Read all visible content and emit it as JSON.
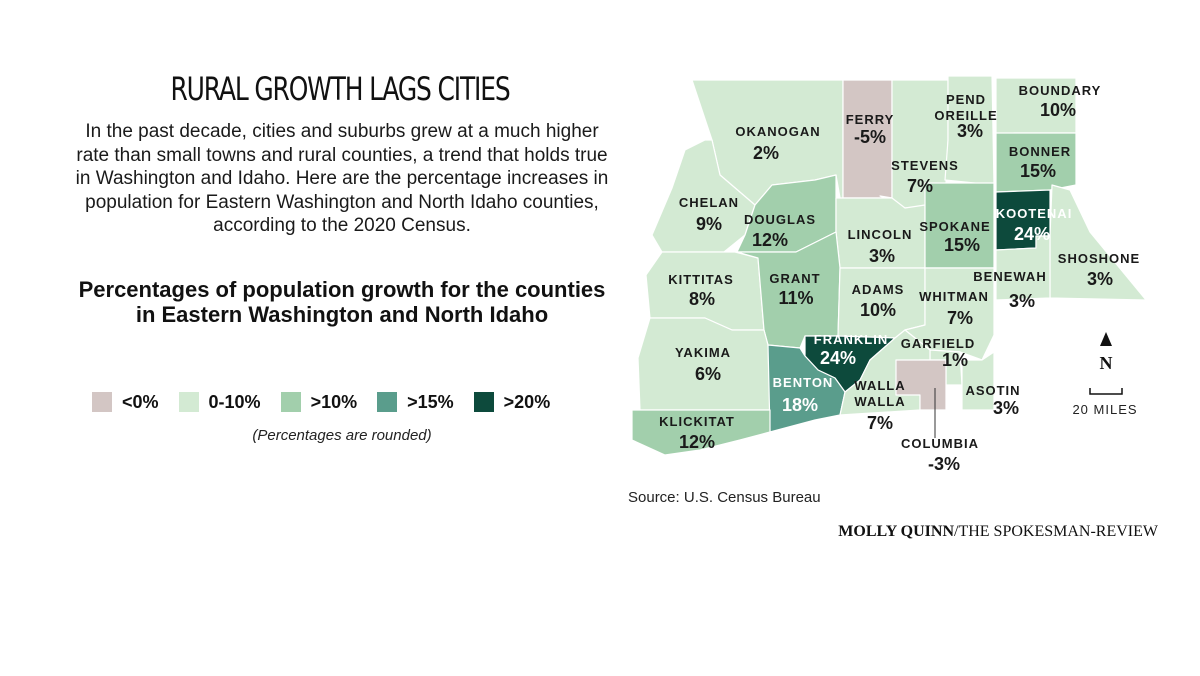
{
  "title": "RURAL GROWTH LAGS CITIES",
  "intro": "In the past decade, cities and suburbs grew at a much higher rate than small towns and rural counties, a trend that holds true in Washington and Idaho. Here are the percentage increases in population for Eastern Washington and North Idaho counties, according to the 2020 Census.",
  "subhead": "Percentages of population growth for the counties in Eastern Washington and North Idaho",
  "legend": [
    {
      "label": "<0%",
      "color": "#d3c6c4"
    },
    {
      "label": "0-10%",
      "color": "#d3ead3"
    },
    {
      "label": ">10%",
      "color": "#a2cfac"
    },
    {
      "label": ">15%",
      "color": "#5a9d8c"
    },
    {
      "label": ">20%",
      "color": "#0d4a3c"
    }
  ],
  "rounded_note": "(Percentages are rounded)",
  "map": {
    "colors": {
      "neg": "#d3c6c4",
      "low": "#d3ead3",
      "mid": "#a2cfac",
      "high": "#5a9d8c",
      "top": "#0d4a3c",
      "border": "#ffffff"
    },
    "counties": [
      {
        "name": "OKANOGAN",
        "value": "2%",
        "class": "low"
      },
      {
        "name": "FERRY",
        "value": "-5%",
        "class": "neg"
      },
      {
        "name": "STEVENS",
        "value": "7%",
        "class": "low"
      },
      {
        "name": "PEND OREILLE",
        "value": "3%",
        "class": "low"
      },
      {
        "name": "BOUNDARY",
        "value": "10%",
        "class": "low"
      },
      {
        "name": "BONNER",
        "value": "15%",
        "class": "mid"
      },
      {
        "name": "CHELAN",
        "value": "9%",
        "class": "low"
      },
      {
        "name": "DOUGLAS",
        "value": "12%",
        "class": "mid"
      },
      {
        "name": "LINCOLN",
        "value": "3%",
        "class": "low"
      },
      {
        "name": "SPOKANE",
        "value": "15%",
        "class": "mid"
      },
      {
        "name": "KOOTENAI",
        "value": "24%",
        "class": "top"
      },
      {
        "name": "SHOSHONE",
        "value": "3%",
        "class": "low"
      },
      {
        "name": "KITTITAS",
        "value": "8%",
        "class": "low"
      },
      {
        "name": "GRANT",
        "value": "11%",
        "class": "mid"
      },
      {
        "name": "ADAMS",
        "value": "10%",
        "class": "low"
      },
      {
        "name": "WHITMAN",
        "value": "7%",
        "class": "low"
      },
      {
        "name": "BENEWAH",
        "value": "3%",
        "class": "low"
      },
      {
        "name": "YAKIMA",
        "value": "6%",
        "class": "low"
      },
      {
        "name": "FRANKLIN",
        "value": "24%",
        "class": "top"
      },
      {
        "name": "GARFIELD",
        "value": "1%",
        "class": "low"
      },
      {
        "name": "BENTON",
        "value": "18%",
        "class": "high"
      },
      {
        "name": "WALLA WALLA",
        "value": "7%",
        "class": "low"
      },
      {
        "name": "ASOTIN",
        "value": "3%",
        "class": "low"
      },
      {
        "name": "KLICKITAT",
        "value": "12%",
        "class": "mid"
      },
      {
        "name": "COLUMBIA",
        "value": "-3%",
        "class": "neg"
      }
    ],
    "north_label": "N",
    "scale_label": "20 MILES"
  },
  "source": "Source: U.S. Census Bureau",
  "credit_name": "MOLLY QUINN",
  "credit_org": "/THE SPOKESMAN-REVIEW"
}
